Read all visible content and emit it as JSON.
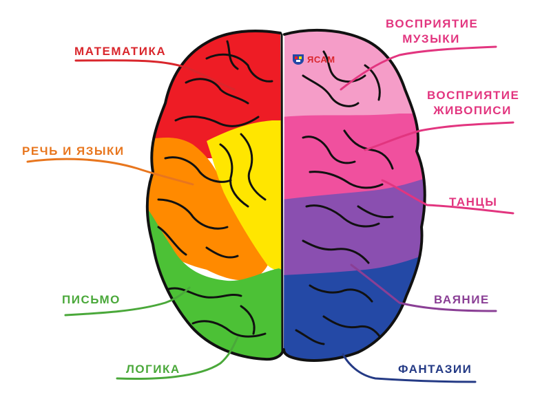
{
  "labels": {
    "math": "МАТЕМАТИКА",
    "speech": "РЕЧЬ И ЯЗЫКИ",
    "writing": "ПИСЬМО",
    "logic": "ЛОГИКА",
    "music_line1": "ВОСПРИЯТИЕ",
    "music_line2": "МУЗЫКИ",
    "painting_line1": "ВОСПРИЯТИЕ",
    "painting_line2": "ЖИВОПИСИ",
    "dance": "ТАНЦЫ",
    "sculpture": "ВАЯНИЕ",
    "fantasy": "ФАНТАЗИИ"
  },
  "logo": {
    "text": "ЯСАМ"
  },
  "colors": {
    "red": "#ee1c25",
    "orange": "#ff8a00",
    "yellow": "#ffe600",
    "green": "#4cc136",
    "light_pink": "#f59dc8",
    "pink": "#f0509e",
    "purple": "#8a4fb0",
    "blue": "#2449a6",
    "label_red": "#d9262c",
    "label_orange": "#e8761e",
    "label_green": "#4aa83a",
    "label_pink": "#e2357f",
    "label_purple": "#8a3f95",
    "label_blue": "#243a85"
  }
}
